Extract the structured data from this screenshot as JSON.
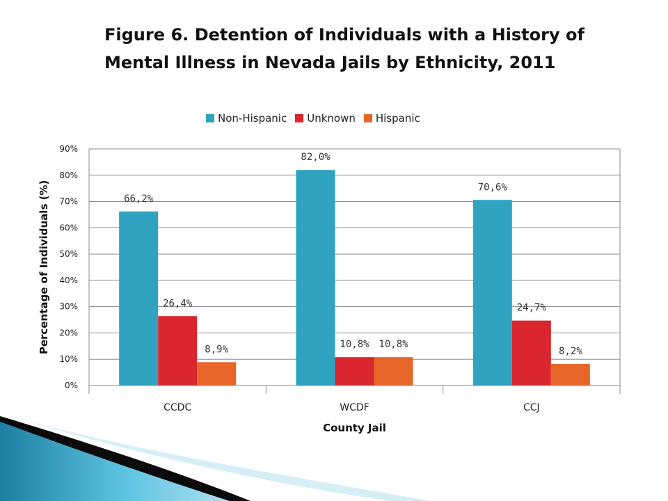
{
  "title_line1": "Figure 6. Detention of Individuals with a History of",
  "title_line2": "Mental Illness in Nevada Jails by Ethnicity, 2011",
  "chart_data": {
    "type": "bar",
    "title": "Figure 6. Detention of Individuals with a History of Mental Illness in Nevada Jails by Ethnicity, 2011",
    "xlabel": "County Jail",
    "ylabel": "Percentage of Individuals (%)",
    "categories": [
      "CCDC",
      "WCDF",
      "CCJ"
    ],
    "series": [
      {
        "name": "Non-Hispanic",
        "color": "#2fa3c0",
        "values": [
          66.2,
          82.0,
          70.6
        ],
        "labels": [
          "66,2%",
          "82,0%",
          "70,6%"
        ]
      },
      {
        "name": "Unknown",
        "color": "#d9262f",
        "values": [
          26.4,
          10.8,
          24.7
        ],
        "labels": [
          "26,4%",
          "10,8%",
          "24,7%"
        ]
      },
      {
        "name": "Hispanic",
        "color": "#e8652a",
        "values": [
          8.9,
          10.8,
          8.2
        ],
        "labels": [
          "8,9%",
          "10,8%",
          "8,2%"
        ]
      }
    ],
    "ylim": [
      0,
      90
    ],
    "yticks": [
      0,
      10,
      20,
      30,
      40,
      50,
      60,
      70,
      80,
      90
    ],
    "ytick_labels": [
      "0%",
      "10%",
      "20%",
      "30%",
      "40%",
      "50%",
      "60%",
      "70%",
      "80%",
      "90%"
    ],
    "grid": true,
    "legend": "top"
  }
}
